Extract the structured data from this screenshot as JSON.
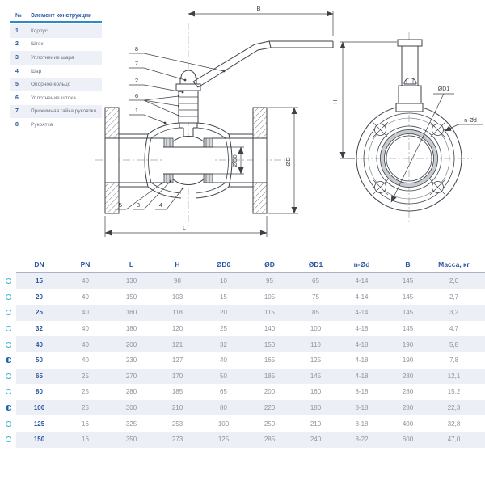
{
  "legend": {
    "header": {
      "num": "№",
      "name": "Элемент конструкции"
    },
    "items": [
      {
        "num": "1",
        "name": "Корпус"
      },
      {
        "num": "2",
        "name": "Шток"
      },
      {
        "num": "3",
        "name": "Уплотнение шара"
      },
      {
        "num": "4",
        "name": "Шар"
      },
      {
        "num": "5",
        "name": "Опорное кольцо"
      },
      {
        "num": "6",
        "name": "Уплотнение штока"
      },
      {
        "num": "7",
        "name": "Прижимная гайка рукоятки"
      },
      {
        "num": "8",
        "name": "Рукоятка"
      }
    ]
  },
  "drawing": {
    "dims": {
      "B": "B",
      "H": "H",
      "L": "L",
      "OD": "ØD",
      "OD0": "ØD0",
      "OD1": "ØD1",
      "NOD": "n-Ød"
    },
    "callouts": {
      "c1": "1",
      "c2": "2",
      "c3": "3",
      "c4": "4",
      "c5": "5",
      "c6": "6",
      "c7": "7",
      "c8": "8"
    }
  },
  "table": {
    "columns": [
      "DN",
      "PN",
      "L",
      "H",
      "ØD0",
      "ØD",
      "ØD1",
      "n-Ød",
      "B",
      "Масса, кг"
    ],
    "rows": [
      {
        "icon": "outline",
        "dn": "15",
        "values": [
          "40",
          "130",
          "98",
          "10",
          "95",
          "65",
          "4-14",
          "145",
          "2,0"
        ]
      },
      {
        "icon": "outline",
        "dn": "20",
        "values": [
          "40",
          "150",
          "103",
          "15",
          "105",
          "75",
          "4-14",
          "145",
          "2,7"
        ]
      },
      {
        "icon": "outline",
        "dn": "25",
        "values": [
          "40",
          "160",
          "118",
          "20",
          "115",
          "85",
          "4-14",
          "145",
          "3,2"
        ]
      },
      {
        "icon": "outline",
        "dn": "32",
        "values": [
          "40",
          "180",
          "120",
          "25",
          "140",
          "100",
          "4-18",
          "145",
          "4,7"
        ]
      },
      {
        "icon": "outline",
        "dn": "40",
        "values": [
          "40",
          "200",
          "121",
          "32",
          "150",
          "110",
          "4-18",
          "190",
          "5,8"
        ]
      },
      {
        "icon": "half",
        "dn": "50",
        "values": [
          "40",
          "230",
          "127",
          "40",
          "165",
          "125",
          "4-18",
          "190",
          "7,8"
        ]
      },
      {
        "icon": "outline",
        "dn": "65",
        "values": [
          "25",
          "270",
          "170",
          "50",
          "185",
          "145",
          "4-18",
          "280",
          "12,1"
        ]
      },
      {
        "icon": "outline",
        "dn": "80",
        "values": [
          "25",
          "280",
          "185",
          "65",
          "200",
          "160",
          "8-18",
          "280",
          "15,2"
        ]
      },
      {
        "icon": "half",
        "dn": "100",
        "values": [
          "25",
          "300",
          "210",
          "80",
          "220",
          "180",
          "8-18",
          "280",
          "22,3"
        ]
      },
      {
        "icon": "outline",
        "dn": "125",
        "values": [
          "16",
          "325",
          "253",
          "100",
          "250",
          "210",
          "8-18",
          "400",
          "32,8"
        ]
      },
      {
        "icon": "outline",
        "dn": "150",
        "values": [
          "16",
          "350",
          "273",
          "125",
          "285",
          "240",
          "8-22",
          "600",
          "47,0"
        ]
      }
    ]
  },
  "colors": {
    "accent_blue": "#2a55a0",
    "legend_underline": "#2d8ac9",
    "row_shade": "#edeff6",
    "cyan_icon": "#39b6ce",
    "dark_icon": "#1766ae",
    "line": "#3c4148",
    "gray_text": "#8e949c"
  }
}
